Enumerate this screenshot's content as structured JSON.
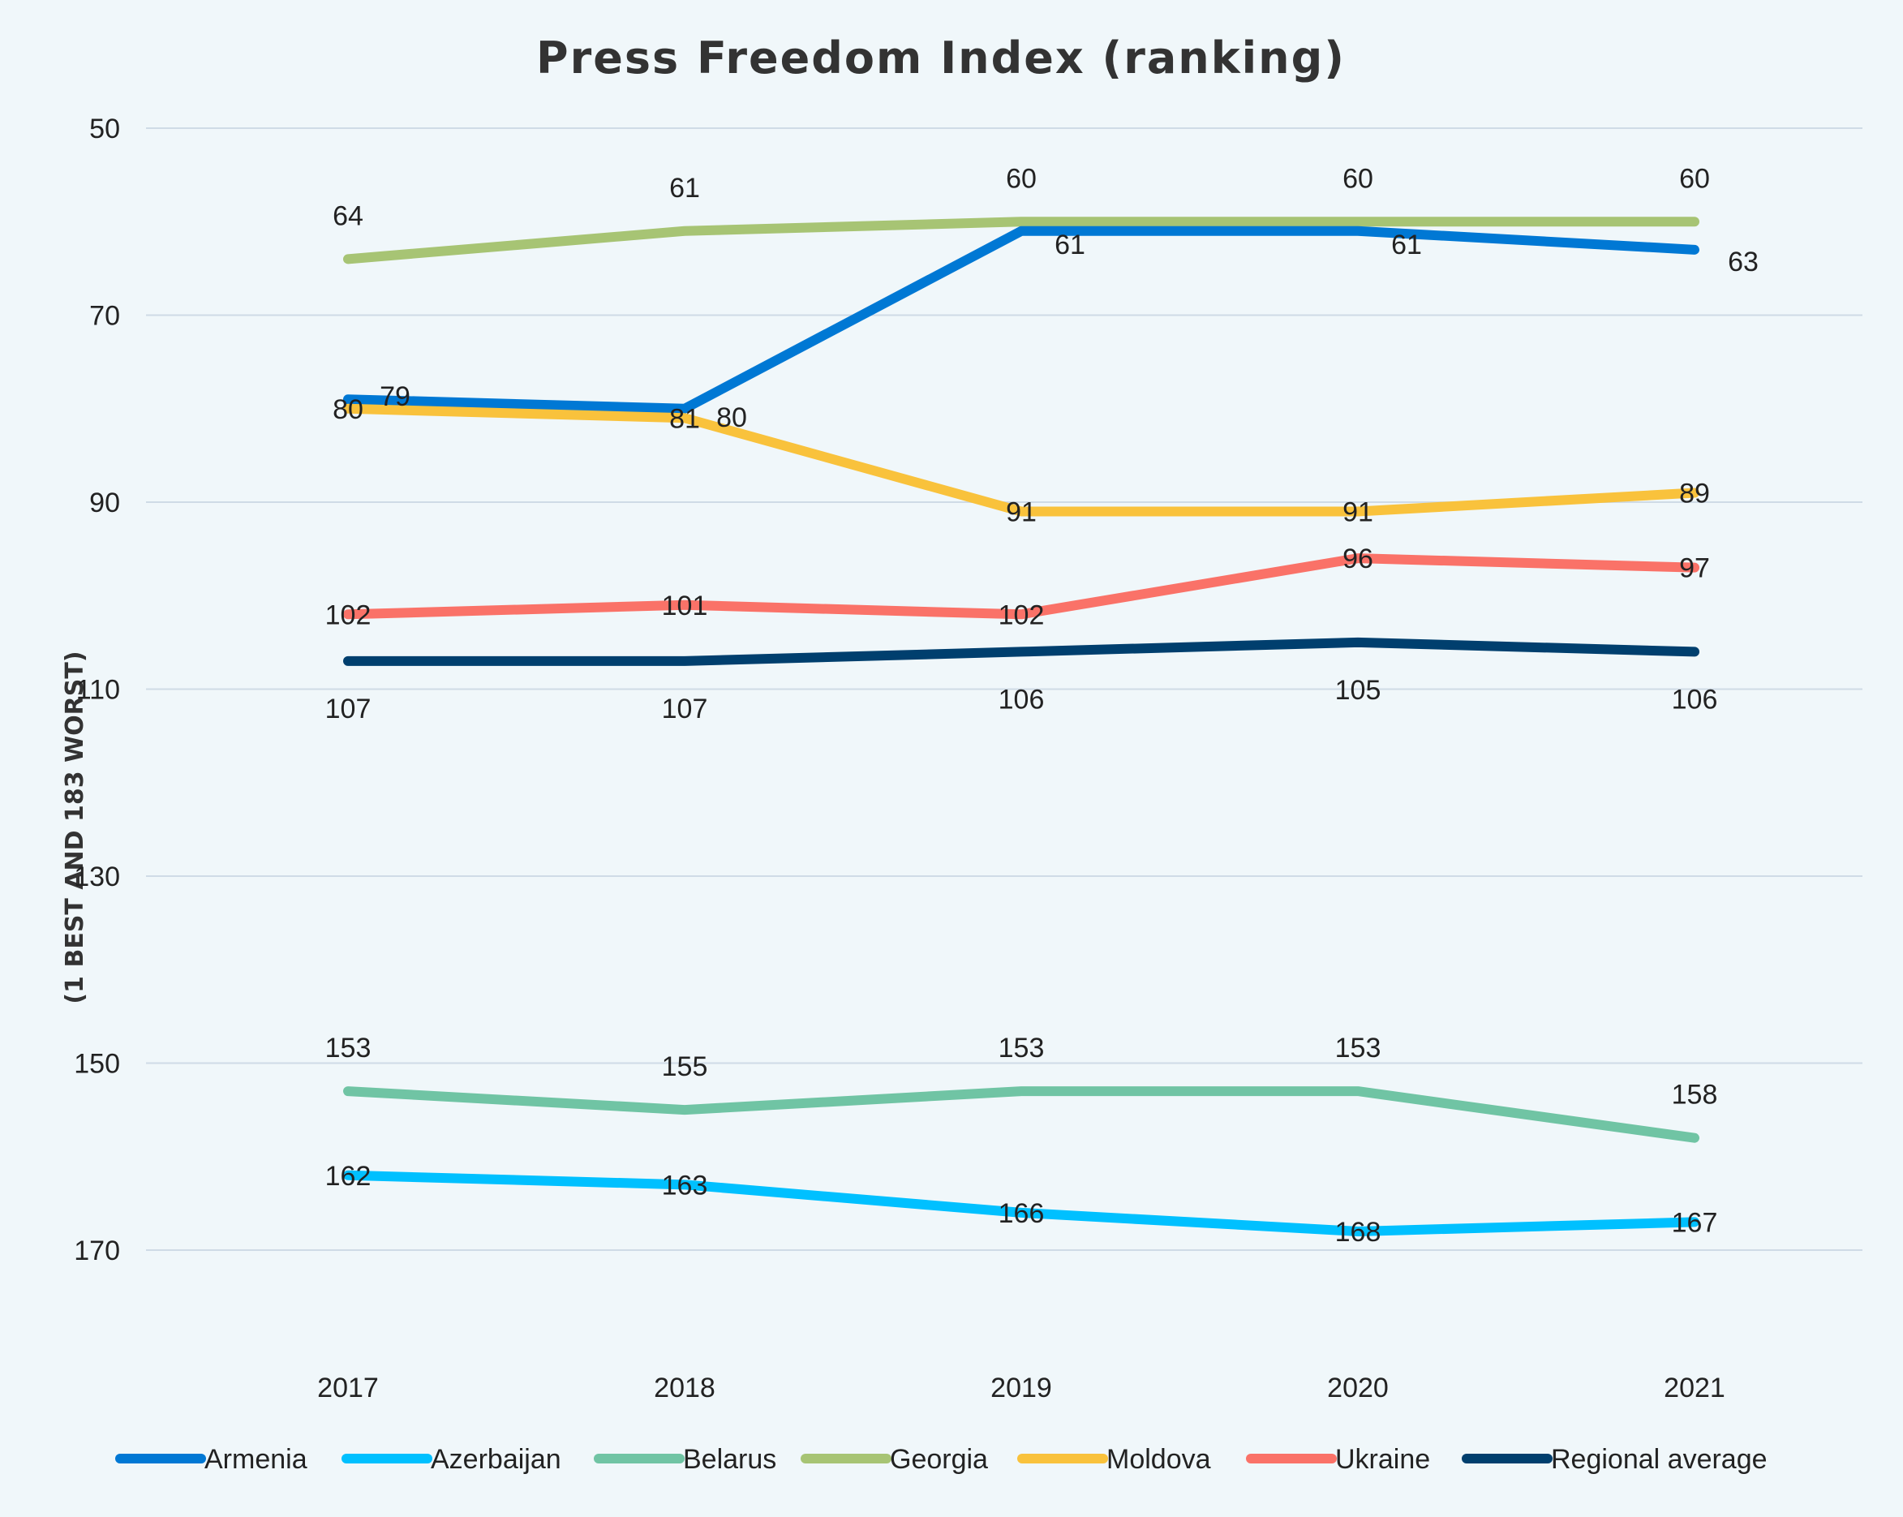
{
  "chart_data": {
    "type": "line",
    "title": "Press Freedom Index (ranking)",
    "xlabel": "",
    "ylabel": "(1 BEST AND 183 WORST)",
    "categories": [
      "2017",
      "2018",
      "2019",
      "2020",
      "2021"
    ],
    "y_ticks": [
      "50",
      "70",
      "90",
      "110",
      "130",
      "150",
      "170"
    ],
    "ylim": [
      180,
      50
    ],
    "y_reversed": true,
    "grid": true,
    "legend_position": "bottom",
    "series": [
      {
        "name": "Armenia",
        "values": [
          79,
          80,
          61,
          61,
          63
        ],
        "color": "#0078d4"
      },
      {
        "name": "Azerbaijan",
        "values": [
          162,
          163,
          166,
          168,
          167
        ],
        "color": "#00c0ff"
      },
      {
        "name": "Belarus",
        "values": [
          153,
          155,
          153,
          153,
          158
        ],
        "color": "#70c4a4"
      },
      {
        "name": "Georgia",
        "values": [
          64,
          61,
          60,
          60,
          60
        ],
        "color": "#a7c474"
      },
      {
        "name": "Moldova",
        "values": [
          80,
          81,
          91,
          91,
          89
        ],
        "color": "#f9c23c"
      },
      {
        "name": "Ukraine",
        "values": [
          102,
          101,
          102,
          96,
          97
        ],
        "color": "#fa7268"
      },
      {
        "name": "Regional average",
        "values": [
          107,
          107,
          106,
          105,
          106
        ],
        "color": "#003f6e"
      }
    ]
  }
}
